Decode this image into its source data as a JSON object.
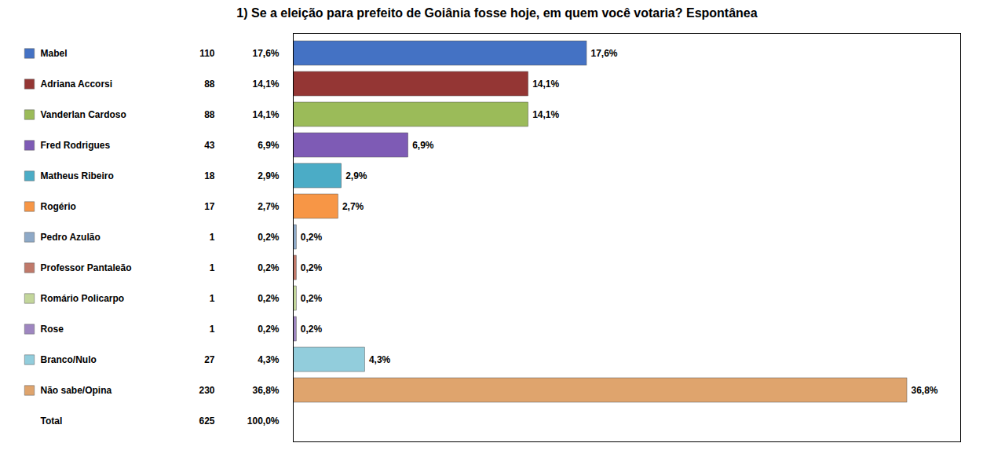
{
  "chart_data": {
    "type": "bar",
    "title": "1) Se a eleição para prefeito de Goiânia fosse hoje, em quem você votaria? Espontânea",
    "orientation": "horizontal",
    "categories": [
      "Mabel",
      "Adriana Accorsi",
      "Vanderlan Cardoso",
      "Fred Rodrigues",
      "Matheus Ribeiro",
      "Rogério",
      "Pedro Azulão",
      "Professor Pantaleão",
      "Romário Policarpo",
      "Rose",
      "Branco/Nulo",
      "Não sabe/Opina"
    ],
    "values": [
      17.6,
      14.1,
      14.1,
      6.9,
      2.9,
      2.7,
      0.2,
      0.2,
      0.2,
      0.2,
      4.3,
      36.8
    ],
    "value_labels": [
      "17,6%",
      "14,1%",
      "14,1%",
      "6,9%",
      "2,9%",
      "2,7%",
      "0,2%",
      "0,2%",
      "0,2%",
      "0,2%",
      "4,3%",
      "36,8%"
    ],
    "counts": [
      110,
      88,
      88,
      43,
      18,
      17,
      1,
      1,
      1,
      1,
      27,
      230
    ],
    "colors": [
      "#4472C4",
      "#943634",
      "#9BBB59",
      "#7E5BB5",
      "#4BACC6",
      "#F79646",
      "#8EA9C7",
      "#C0796A",
      "#C3D69B",
      "#9E86C0",
      "#92CDDC",
      "#DFA46D"
    ],
    "total_name": "Total",
    "total_count": 625,
    "total_label": "100,0%",
    "xlim": [
      0,
      40
    ],
    "xticks": [],
    "tick_labels": false,
    "grid": false,
    "data_labels": true
  }
}
